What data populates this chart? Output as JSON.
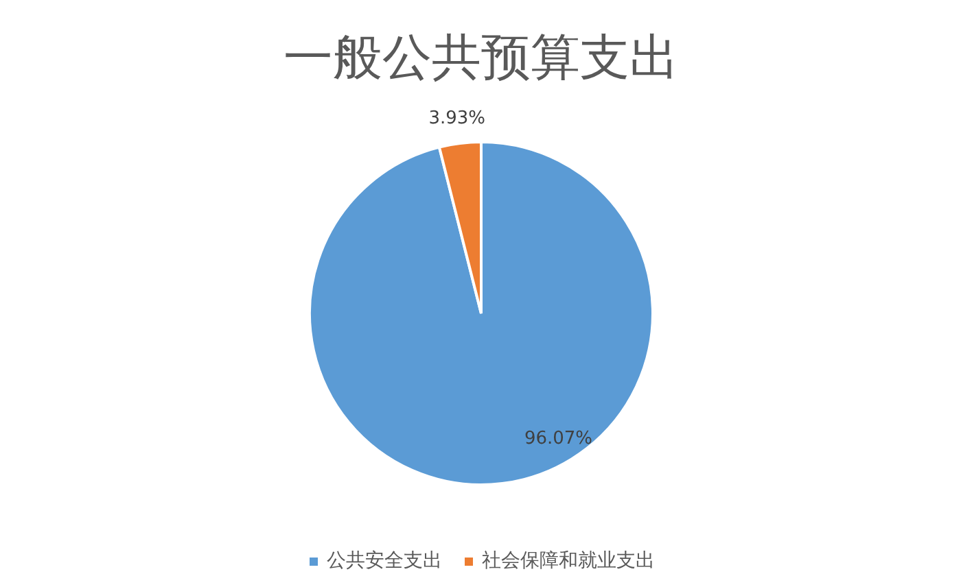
{
  "chart_data": {
    "type": "pie",
    "title": "一般公共预算支出",
    "categories": [
      "公共安全支出",
      "社会保障和就业支出"
    ],
    "values": [
      96.07,
      3.93
    ],
    "colors": [
      "#5b9bd5",
      "#ed7d31"
    ],
    "value_labels": [
      "96.07%",
      "3.93%"
    ],
    "legend": "bottom"
  }
}
